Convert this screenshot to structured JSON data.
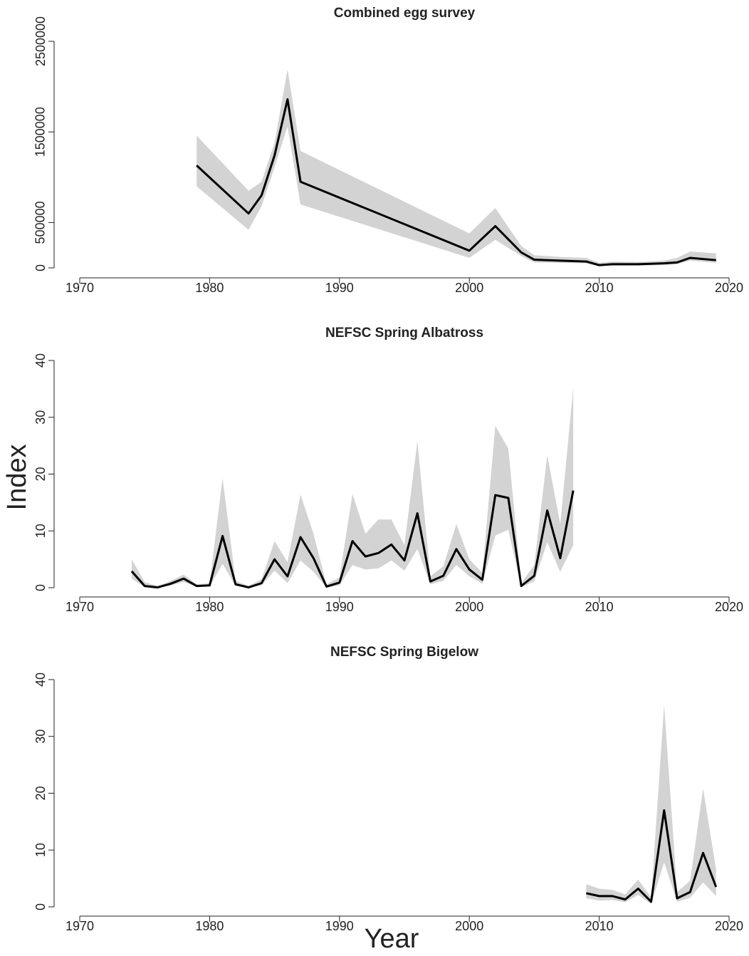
{
  "xlabel": "Year",
  "ylabel": "Index",
  "chart_data": [
    {
      "type": "line",
      "title": "Combined egg survey",
      "band_color": "#d3d3d3",
      "x": [
        1979,
        1983,
        1984,
        1985,
        1986,
        1987,
        2000,
        2002,
        2004,
        2005,
        2007,
        2009,
        2010,
        2011,
        2013,
        2015,
        2016,
        2017,
        2019
      ],
      "series": [
        {
          "color": "#000000",
          "values": [
            1130000,
            600000,
            800000,
            1240000,
            1860000,
            950000,
            190000,
            460000,
            170000,
            90000,
            80000,
            70000,
            30000,
            40000,
            40000,
            50000,
            60000,
            110000,
            85000
          ],
          "lower": [
            900000,
            420000,
            680000,
            1110000,
            1560000,
            700000,
            110000,
            310000,
            130000,
            60000,
            55000,
            50000,
            16000,
            24000,
            24000,
            30000,
            40000,
            80000,
            55000
          ],
          "upper": [
            1460000,
            850000,
            950000,
            1380000,
            2190000,
            1290000,
            380000,
            660000,
            240000,
            140000,
            120000,
            110000,
            55000,
            70000,
            65000,
            80000,
            110000,
            180000,
            160000
          ]
        }
      ],
      "xlim": [
        1970,
        2020
      ],
      "xticks": [
        1970,
        1980,
        1990,
        2000,
        2010,
        2020
      ],
      "ylim": [
        0,
        2500000
      ],
      "yticks": [
        0,
        500000,
        1500000,
        2500000
      ]
    },
    {
      "type": "line",
      "title": "NEFSC Spring Albatross",
      "band_color": "#d3d3d3",
      "x": [
        1974,
        1975,
        1976,
        1977,
        1978,
        1979,
        1980,
        1981,
        1982,
        1983,
        1984,
        1985,
        1986,
        1987,
        1988,
        1989,
        1990,
        1991,
        1992,
        1993,
        1994,
        1995,
        1996,
        1997,
        1998,
        1999,
        2000,
        2001,
        2002,
        2003,
        2004,
        2005,
        2006,
        2007,
        2008
      ],
      "series": [
        {
          "color": "#000000",
          "values": [
            2.9,
            0.3,
            0.05,
            0.7,
            1.6,
            0.3,
            0.4,
            9.1,
            0.6,
            0.05,
            0.8,
            5.0,
            2.0,
            8.9,
            5.2,
            0.2,
            0.9,
            8.2,
            5.5,
            6.1,
            7.6,
            4.8,
            13.1,
            1.1,
            2.1,
            6.8,
            3.2,
            1.4,
            16.3,
            15.8,
            0.3,
            2.1,
            13.6,
            5.2,
            17.1
          ],
          "lower": [
            1.6,
            0.1,
            0,
            0.4,
            1.0,
            0.15,
            0.2,
            4.2,
            0.3,
            0,
            0.4,
            3.0,
            0.8,
            4.8,
            2.8,
            0.05,
            0.4,
            4.0,
            3.2,
            3.4,
            4.8,
            3.0,
            6.8,
            0.6,
            1.2,
            4.0,
            2.0,
            0.7,
            9.2,
            10.2,
            0.1,
            1.1,
            8.0,
            2.8,
            7.5
          ],
          "upper": [
            5.0,
            1.0,
            0.3,
            1.2,
            2.3,
            0.6,
            0.8,
            19.3,
            1.2,
            0.3,
            1.5,
            8.2,
            4.5,
            16.4,
            9.5,
            0.6,
            1.8,
            16.5,
            9.5,
            12.0,
            12.0,
            7.5,
            25.8,
            2.0,
            3.8,
            11.2,
            5.0,
            2.6,
            28.5,
            24.5,
            0.8,
            4.0,
            23.3,
            11.2,
            35.2
          ]
        }
      ],
      "xlim": [
        1970,
        2020
      ],
      "xticks": [
        1970,
        1980,
        1990,
        2000,
        2010,
        2020
      ],
      "ylim": [
        0,
        40
      ],
      "yticks": [
        0,
        10,
        20,
        30,
        40
      ]
    },
    {
      "type": "line",
      "title": "NEFSC Spring Bigelow",
      "band_color": "#d3d3d3",
      "x": [
        2009,
        2010,
        2011,
        2012,
        2013,
        2014,
        2015,
        2016,
        2017,
        2018,
        2019
      ],
      "series": [
        {
          "color": "#000000",
          "values": [
            2.4,
            1.9,
            1.9,
            1.3,
            3.2,
            0.9,
            17.0,
            1.5,
            2.6,
            9.5,
            3.5
          ],
          "lower": [
            1.5,
            1.1,
            1.2,
            0.8,
            2.1,
            0.5,
            7.8,
            0.9,
            1.6,
            4.3,
            1.9
          ],
          "upper": [
            4.0,
            3.2,
            3.0,
            2.2,
            4.8,
            1.7,
            35.5,
            2.6,
            4.6,
            20.8,
            6.6
          ]
        }
      ],
      "xlim": [
        1970,
        2020
      ],
      "xticks": [
        1970,
        1980,
        1990,
        2000,
        2010,
        2020
      ],
      "ylim": [
        0,
        40
      ],
      "yticks": [
        0,
        10,
        20,
        30,
        40
      ]
    }
  ]
}
